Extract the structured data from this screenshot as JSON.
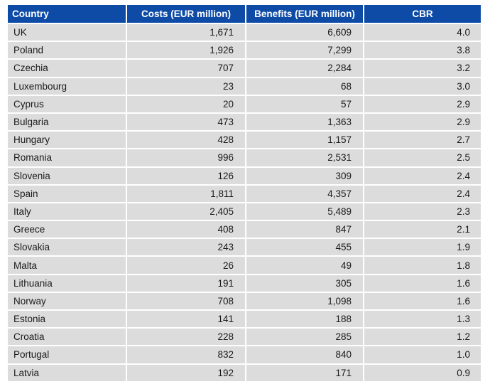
{
  "headers": [
    "Country",
    "Costs (EUR million)",
    "Benefits (EUR million)",
    "CBR"
  ],
  "header_color": "#0e4ba6",
  "row_color": "#dcdcdc",
  "rows": [
    [
      "UK",
      "1,671",
      "6,609",
      "4.0"
    ],
    [
      "Poland",
      "1,926",
      "7,299",
      "3.8"
    ],
    [
      "Czechia",
      "707",
      "2,284",
      "3.2"
    ],
    [
      "Luxembourg",
      "23",
      "68",
      "3.0"
    ],
    [
      "Cyprus",
      "20",
      "57",
      "2.9"
    ],
    [
      "Bulgaria",
      "473",
      "1,363",
      "2.9"
    ],
    [
      "Hungary",
      "428",
      "1,157",
      "2.7"
    ],
    [
      "Romania",
      "996",
      "2,531",
      "2.5"
    ],
    [
      "Slovenia",
      "126",
      "309",
      "2.4"
    ],
    [
      "Spain",
      "1,811",
      "4,357",
      "2.4"
    ],
    [
      "Italy",
      "2,405",
      "5,489",
      "2.3"
    ],
    [
      "Greece",
      "408",
      "847",
      "2.1"
    ],
    [
      "Slovakia",
      "243",
      "455",
      "1.9"
    ],
    [
      "Malta",
      "26",
      "49",
      "1.8"
    ],
    [
      "Lithuania",
      "191",
      "305",
      "1.6"
    ],
    [
      "Norway",
      "708",
      "1,098",
      "1.6"
    ],
    [
      "Estonia",
      "141",
      "188",
      "1.3"
    ],
    [
      "Croatia",
      "228",
      "285",
      "1.2"
    ],
    [
      "Portugal",
      "832",
      "840",
      "1.0"
    ],
    [
      "Latvia",
      "192",
      "171",
      "0.9"
    ]
  ]
}
